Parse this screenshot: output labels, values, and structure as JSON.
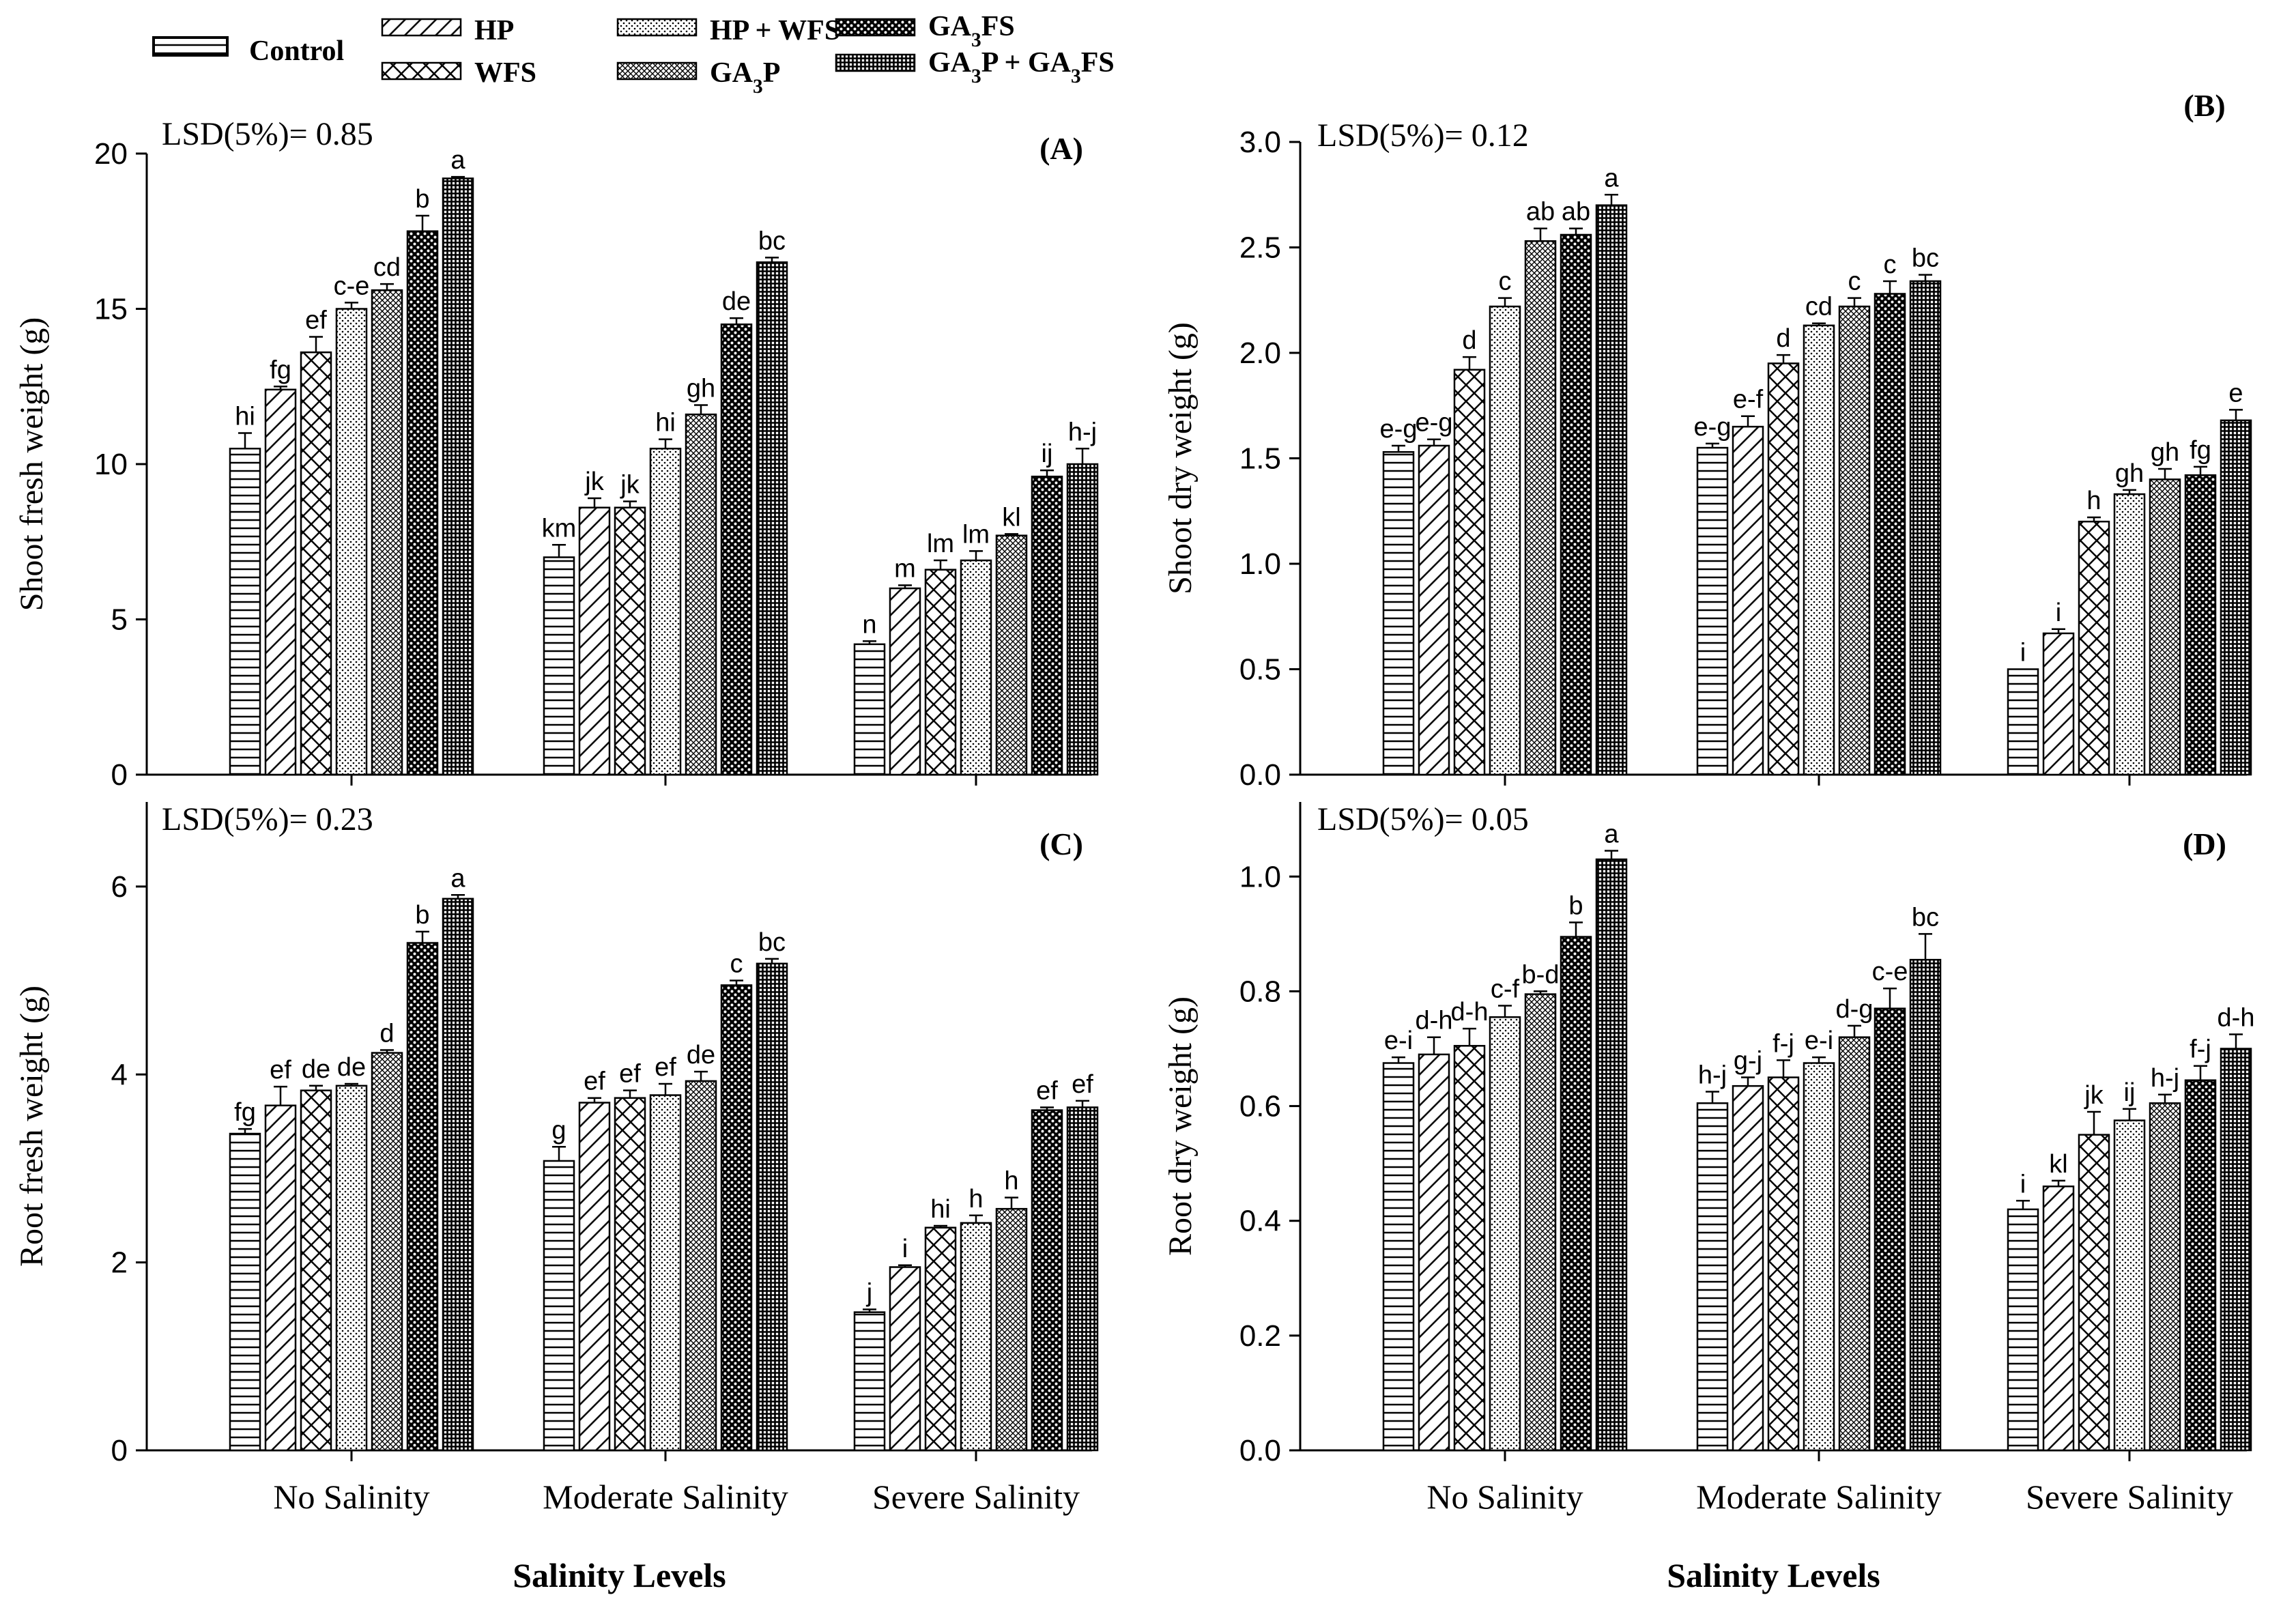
{
  "legend": {
    "items": [
      {
        "label": "Control",
        "pattern": "p-hlines"
      },
      {
        "label": "HP",
        "pattern": "p-diag"
      },
      {
        "label": "WFS",
        "pattern": "p-cross"
      },
      {
        "label": "HP + WFS",
        "pattern": "p-dots"
      },
      {
        "label": "GA3P",
        "pattern": "p-xhatch"
      },
      {
        "label": "GA3FS",
        "pattern": "p-bigdots"
      },
      {
        "label": "GA3P + GA3FS",
        "pattern": "p-grid"
      }
    ]
  },
  "chart_data": [
    {
      "type": "bar",
      "panel_label": "(A)",
      "lsd_text": "LSD(5%)= 0.85",
      "title": "",
      "xlabel": "Salinity Levels",
      "ylabel": "Shoot fresh weight (g)",
      "ylim": [
        0,
        20
      ],
      "ytick_labels": [
        "0",
        "5",
        "10",
        "15",
        "20"
      ],
      "categories": [
        "No Salinity",
        "Moderate Salinity",
        "Severe Salinity"
      ],
      "series": [
        {
          "name": "Control",
          "values": [
            10.5,
            7.0,
            4.2
          ],
          "errors": [
            0.5,
            0.4,
            0.1
          ],
          "letters": [
            "hi",
            "km",
            "n"
          ]
        },
        {
          "name": "HP",
          "values": [
            12.4,
            8.6,
            6.0
          ],
          "errors": [
            0.1,
            0.3,
            0.1
          ],
          "letters": [
            "fg",
            "jk",
            "m"
          ]
        },
        {
          "name": "WFS",
          "values": [
            13.6,
            8.6,
            6.6
          ],
          "errors": [
            0.5,
            0.2,
            0.3
          ],
          "letters": [
            "ef",
            "jk",
            "lm"
          ]
        },
        {
          "name": "HP + WFS",
          "values": [
            15.0,
            10.5,
            6.9
          ],
          "errors": [
            0.2,
            0.3,
            0.3
          ],
          "letters": [
            "c-e",
            "hi",
            "lm"
          ]
        },
        {
          "name": "GA3P",
          "values": [
            15.6,
            11.6,
            7.7
          ],
          "errors": [
            0.2,
            0.3,
            0.05
          ],
          "letters": [
            "cd",
            "gh",
            "kl"
          ]
        },
        {
          "name": "GA3FS",
          "values": [
            17.5,
            14.5,
            9.6
          ],
          "errors": [
            0.5,
            0.2,
            0.2
          ],
          "letters": [
            "b",
            "de",
            "ij"
          ]
        },
        {
          "name": "GA3P + GA3FS",
          "values": [
            19.2,
            16.5,
            10.0
          ],
          "errors": [
            0.05,
            0.15,
            0.5
          ],
          "letters": [
            "a",
            "bc",
            "h-j"
          ]
        }
      ]
    },
    {
      "type": "bar",
      "panel_label": "(B)",
      "lsd_text": "LSD(5%)= 0.12",
      "title": "",
      "xlabel": "Salinity Levels",
      "ylabel": "Shoot dry weight (g)",
      "ylim": [
        0,
        3.0
      ],
      "ytick_labels": [
        "0.0",
        "0.5",
        "1.0",
        "1.5",
        "2.0",
        "2.5",
        "3.0"
      ],
      "categories": [
        "No Salinity",
        "Moderate Salinity",
        "Severe Salinity"
      ],
      "series": [
        {
          "name": "Control",
          "values": [
            1.53,
            1.55,
            0.5
          ],
          "errors": [
            0.03,
            0.02,
            0.0
          ],
          "letters": [
            "e-g",
            "e-g",
            "i"
          ]
        },
        {
          "name": "HP",
          "values": [
            1.56,
            1.65,
            0.67
          ],
          "errors": [
            0.03,
            0.05,
            0.02
          ],
          "letters": [
            "e-g",
            "e-f",
            "i"
          ]
        },
        {
          "name": "WFS",
          "values": [
            1.92,
            1.95,
            1.2
          ],
          "errors": [
            0.06,
            0.04,
            0.02
          ],
          "letters": [
            "d",
            "d",
            "h"
          ]
        },
        {
          "name": "HP + WFS",
          "values": [
            2.22,
            2.13,
            1.33
          ],
          "errors": [
            0.04,
            0.01,
            0.02
          ],
          "letters": [
            "c",
            "cd",
            "gh"
          ]
        },
        {
          "name": "GA3P",
          "values": [
            2.53,
            2.22,
            1.4
          ],
          "errors": [
            0.06,
            0.04,
            0.05
          ],
          "letters": [
            "ab",
            "c",
            "gh"
          ]
        },
        {
          "name": "GA3FS",
          "values": [
            2.56,
            2.28,
            1.42
          ],
          "errors": [
            0.03,
            0.06,
            0.04
          ],
          "letters": [
            "ab",
            "c",
            "fg"
          ]
        },
        {
          "name": "GA3P + GA3FS",
          "values": [
            2.7,
            2.34,
            1.68
          ],
          "errors": [
            0.05,
            0.03,
            0.05
          ],
          "letters": [
            "a",
            "bc",
            "e"
          ]
        }
      ]
    },
    {
      "type": "bar",
      "panel_label": "(C)",
      "lsd_text": "LSD(5%)= 0.23",
      "title": "",
      "xlabel": "Salinity Levels",
      "ylabel": "Root fresh weight (g)",
      "ylim": [
        0,
        6.9
      ],
      "ytick_labels": [
        "0",
        "2",
        "4",
        "6"
      ],
      "categories": [
        "No Salinity",
        "Moderate Salinity",
        "Severe Salinity"
      ],
      "series": [
        {
          "name": "Control",
          "values": [
            3.37,
            3.08,
            1.47
          ],
          "errors": [
            0.05,
            0.15,
            0.03
          ],
          "letters": [
            "fg",
            "g",
            "j"
          ]
        },
        {
          "name": "HP",
          "values": [
            3.67,
            3.7,
            1.95
          ],
          "errors": [
            0.2,
            0.05,
            0.02
          ],
          "letters": [
            "ef",
            "ef",
            "i"
          ]
        },
        {
          "name": "WFS",
          "values": [
            3.83,
            3.75,
            2.37
          ],
          "errors": [
            0.05,
            0.08,
            0.02
          ],
          "letters": [
            "de",
            "ef",
            "hi"
          ]
        },
        {
          "name": "HP + WFS",
          "values": [
            3.88,
            3.78,
            2.42
          ],
          "errors": [
            0.02,
            0.12,
            0.08
          ],
          "letters": [
            "de",
            "ef",
            "h"
          ]
        },
        {
          "name": "GA3P",
          "values": [
            4.23,
            3.93,
            2.57
          ],
          "errors": [
            0.03,
            0.1,
            0.12
          ],
          "letters": [
            "d",
            "de",
            "h"
          ]
        },
        {
          "name": "GA3FS",
          "values": [
            5.4,
            4.95,
            3.62
          ],
          "errors": [
            0.12,
            0.05,
            0.03
          ],
          "letters": [
            "b",
            "c",
            "ef"
          ]
        },
        {
          "name": "GA3P + GA3FS",
          "values": [
            5.87,
            5.18,
            3.65
          ],
          "errors": [
            0.04,
            0.05,
            0.07
          ],
          "letters": [
            "a",
            "bc",
            "ef"
          ]
        }
      ]
    },
    {
      "type": "bar",
      "panel_label": "(D)",
      "lsd_text": "LSD(5%)= 0.05",
      "title": "",
      "xlabel": "Salinity Levels",
      "ylabel": "Root dry weight (g)",
      "ylim": [
        0,
        1.13
      ],
      "ytick_labels": [
        "0.0",
        "0.2",
        "0.4",
        "0.6",
        "0.8",
        "1.0"
      ],
      "categories": [
        "No Salinity",
        "Moderate Salinity",
        "Severe Salinity"
      ],
      "series": [
        {
          "name": "Control",
          "values": [
            0.675,
            0.605,
            0.42
          ],
          "errors": [
            0.01,
            0.02,
            0.015
          ],
          "letters": [
            "e-i",
            "h-j",
            "i"
          ]
        },
        {
          "name": "HP",
          "values": [
            0.69,
            0.635,
            0.46
          ],
          "errors": [
            0.03,
            0.015,
            0.01
          ],
          "letters": [
            "d-h",
            "g-j",
            "kl"
          ]
        },
        {
          "name": "WFS",
          "values": [
            0.705,
            0.65,
            0.55
          ],
          "errors": [
            0.03,
            0.03,
            0.04
          ],
          "letters": [
            "d-h",
            "f-j",
            "jk"
          ]
        },
        {
          "name": "HP + WFS",
          "values": [
            0.755,
            0.675,
            0.575
          ],
          "errors": [
            0.02,
            0.01,
            0.02
          ],
          "letters": [
            "c-f",
            "e-i",
            "ij"
          ]
        },
        {
          "name": "GA3P",
          "values": [
            0.795,
            0.72,
            0.605
          ],
          "errors": [
            0.005,
            0.02,
            0.015
          ],
          "letters": [
            "b-d",
            "d-g",
            "h-j"
          ]
        },
        {
          "name": "GA3FS",
          "values": [
            0.895,
            0.77,
            0.645
          ],
          "errors": [
            0.025,
            0.035,
            0.025
          ],
          "letters": [
            "b",
            "c-e",
            "f-j"
          ]
        },
        {
          "name": "GA3P + GA3FS",
          "values": [
            1.03,
            0.855,
            0.7
          ],
          "errors": [
            0.015,
            0.045,
            0.025
          ],
          "letters": [
            "a",
            "bc",
            "d-h"
          ]
        }
      ]
    }
  ]
}
